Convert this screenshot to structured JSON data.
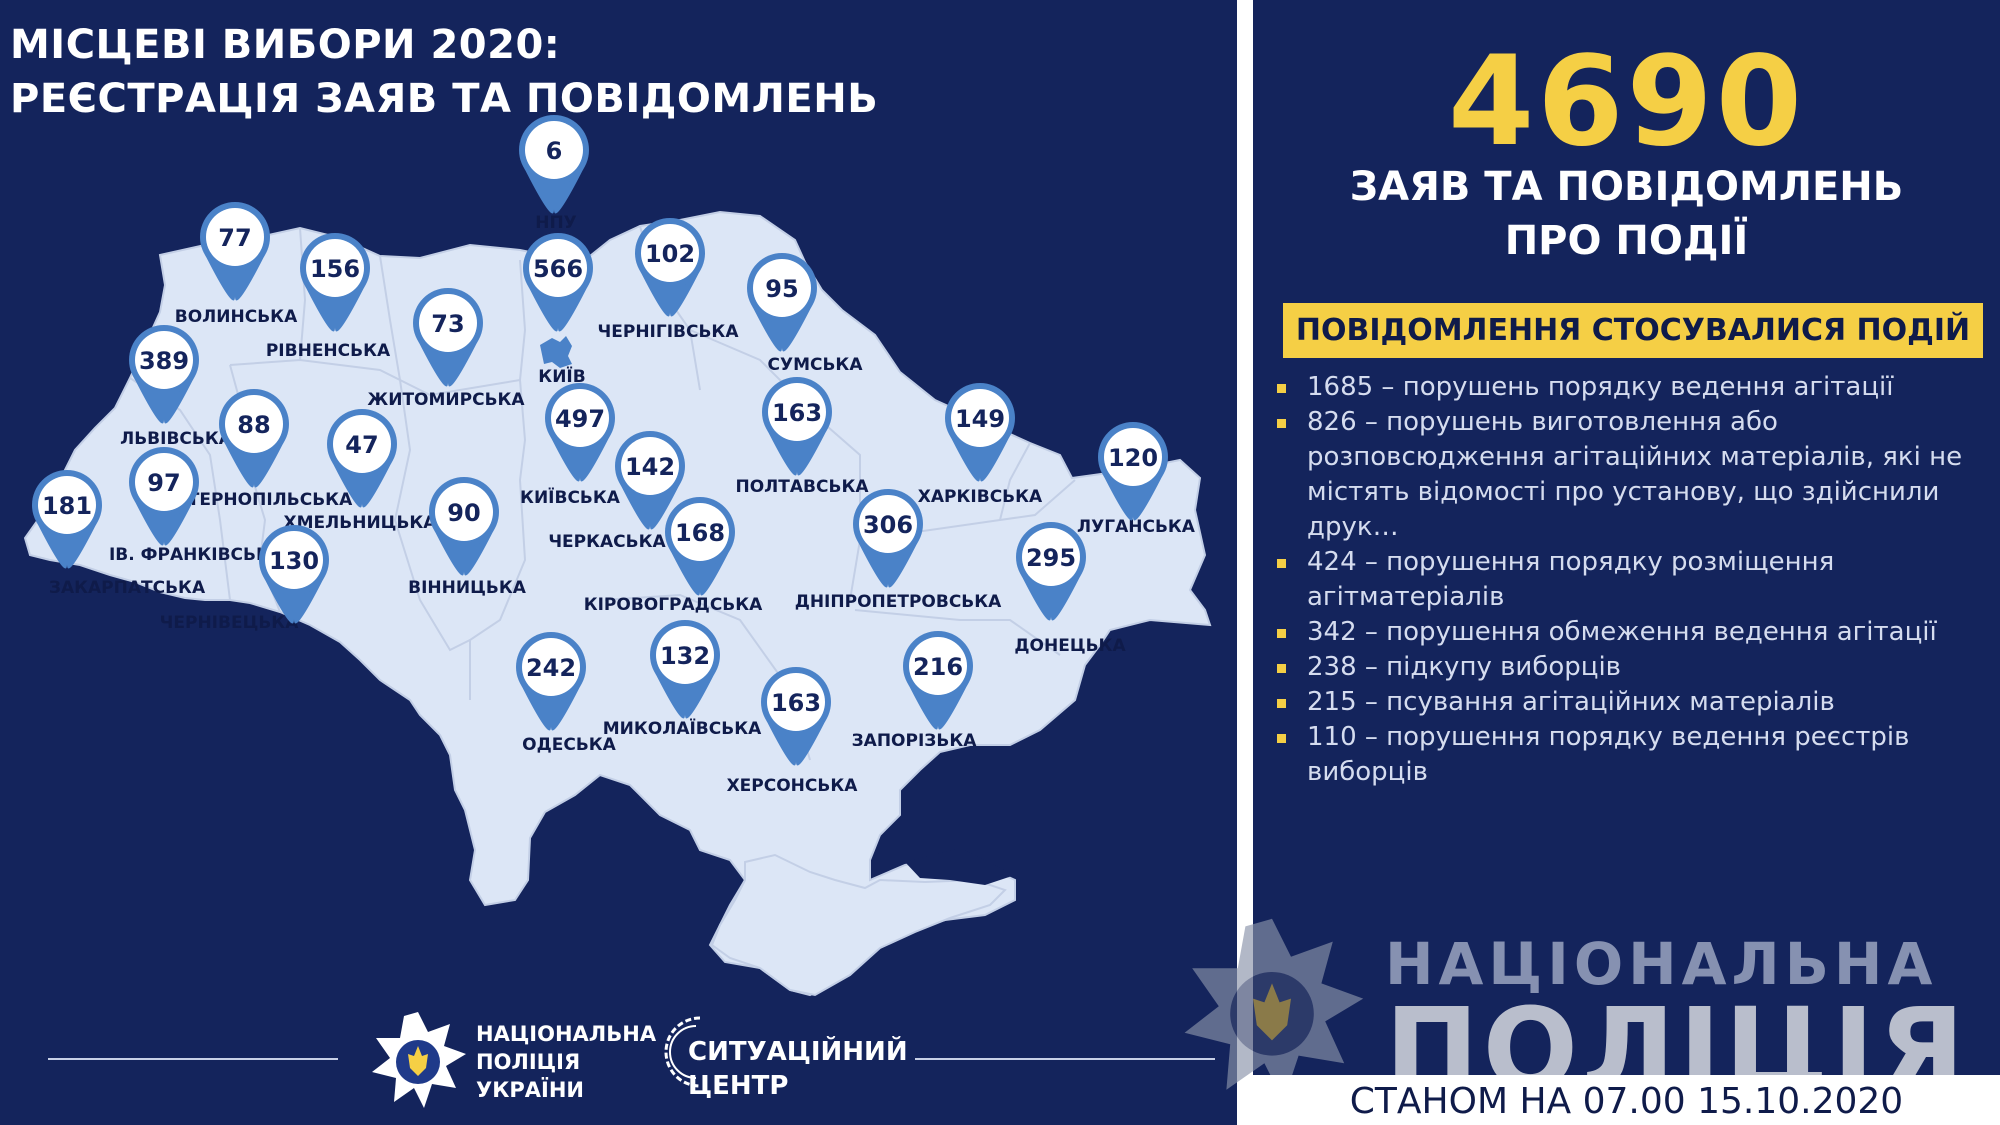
{
  "title": {
    "line1": "МІСЦЕВІ ВИБОРИ 2020:",
    "line2": "РЕЄСТРАЦІЯ ЗАЯВ ТА ПОВІДОМЛЕНЬ"
  },
  "colors": {
    "background": "#14245c",
    "map_fill": "#dce6f6",
    "pin_blue": "#4a82c8",
    "accent_yellow": "#f5cf45",
    "text_white": "#ffffff"
  },
  "regions": [
    {
      "key": "npu",
      "name": "НПУ",
      "value": "6"
    },
    {
      "key": "volyn",
      "name": "ВОЛИНСЬКА",
      "value": "77"
    },
    {
      "key": "rivne",
      "name": "РІВНЕНСЬКА",
      "value": "156"
    },
    {
      "key": "kyiv_city",
      "name": "КИЇВ",
      "value": "566"
    },
    {
      "key": "chernihiv",
      "name": "ЧЕРНІГІВСЬКА",
      "value": "102"
    },
    {
      "key": "sumy",
      "name": "СУМСЬКА",
      "value": "95"
    },
    {
      "key": "zhytomyr",
      "name": "ЖИТОМИРСЬКА",
      "value": "73"
    },
    {
      "key": "lviv",
      "name": "ЛЬВІВСЬКА",
      "value": "389"
    },
    {
      "key": "ternopil",
      "name": "ТЕРНОПІЛЬСЬКА",
      "value": "88"
    },
    {
      "key": "khmelnytskyi",
      "name": "ХМЕЛЬНИЦЬКА",
      "value": "47"
    },
    {
      "key": "kyiv_region",
      "name": "КИЇВСЬКА",
      "value": "497"
    },
    {
      "key": "poltava",
      "name": "ПОЛТАВСЬКА",
      "value": "163"
    },
    {
      "key": "kharkiv",
      "name": "ХАРКІВСЬКА",
      "value": "149"
    },
    {
      "key": "luhansk",
      "name": "ЛУГАНСЬКА",
      "value": "120"
    },
    {
      "key": "zakarpattia",
      "name": "ЗАКАРПАТСЬКА",
      "value": "181"
    },
    {
      "key": "ivano_frankivsk",
      "name": "ІВ. ФРАНКІВСЬКА",
      "value": "97"
    },
    {
      "key": "cherkasy",
      "name": "ЧЕРКАСЬКА",
      "value": "142"
    },
    {
      "key": "vinnytsia",
      "name": "ВІННИЦЬКА",
      "value": "90"
    },
    {
      "key": "chernivtsi",
      "name": "ЧЕРНІВЕЦЬКА",
      "value": "130"
    },
    {
      "key": "kirovohrad",
      "name": "КІРОВОГРАДСЬКА",
      "value": "168"
    },
    {
      "key": "dnipro",
      "name": "ДНІПРОПЕТРОВСЬКА",
      "value": "306"
    },
    {
      "key": "donetsk",
      "name": "ДОНЕЦЬКА",
      "value": "295"
    },
    {
      "key": "odesa",
      "name": "ОДЕСЬКА",
      "value": "242"
    },
    {
      "key": "mykolaiv",
      "name": "МИКОЛАЇВСЬКА",
      "value": "132"
    },
    {
      "key": "kherson",
      "name": "ХЕРСОНСЬКА",
      "value": "163"
    },
    {
      "key": "zaporizhzhia",
      "name": "ЗАПОРІЗЬКА",
      "value": "216"
    }
  ],
  "footer_left": {
    "npu_logo_lines": [
      "НАЦІОНАЛЬНА",
      "ПОЛІЦІЯ",
      "УКРАЇНИ"
    ],
    "situation_center_lines": [
      "СИТУАЦІЙНИЙ",
      "ЦЕНТР"
    ]
  },
  "summary": {
    "total": "4690",
    "caption_line1": "ЗАЯВ ТА ПОВІДОМЛЕНЬ",
    "caption_line2": "ПРО ПОДІЇ",
    "banner": "ПОВІДОМЛЕННЯ СТОСУВАЛИСЯ ПОДІЙ",
    "items": [
      "1685 – порушень порядку ведення агітації",
      "826 – порушень виготовлення або розповсюдження агітаційних матеріалів, які не містять відомості про установу, що здійснили друк…",
      "424 – порушення порядку розміщення агітматеріалів",
      "342 – порушення обмеження ведення агітації",
      "238 – підкупу виборців",
      "215 – псування агітаційних матеріалів",
      "110 – порушення порядку ведення реєстрів виборців"
    ]
  },
  "watermark": {
    "line1": "НАЦІОНАЛЬНА",
    "line2": "ПОЛІЦІЯ"
  },
  "date_stamp": "СТАНОМ НА 07.00 15.10.2020"
}
